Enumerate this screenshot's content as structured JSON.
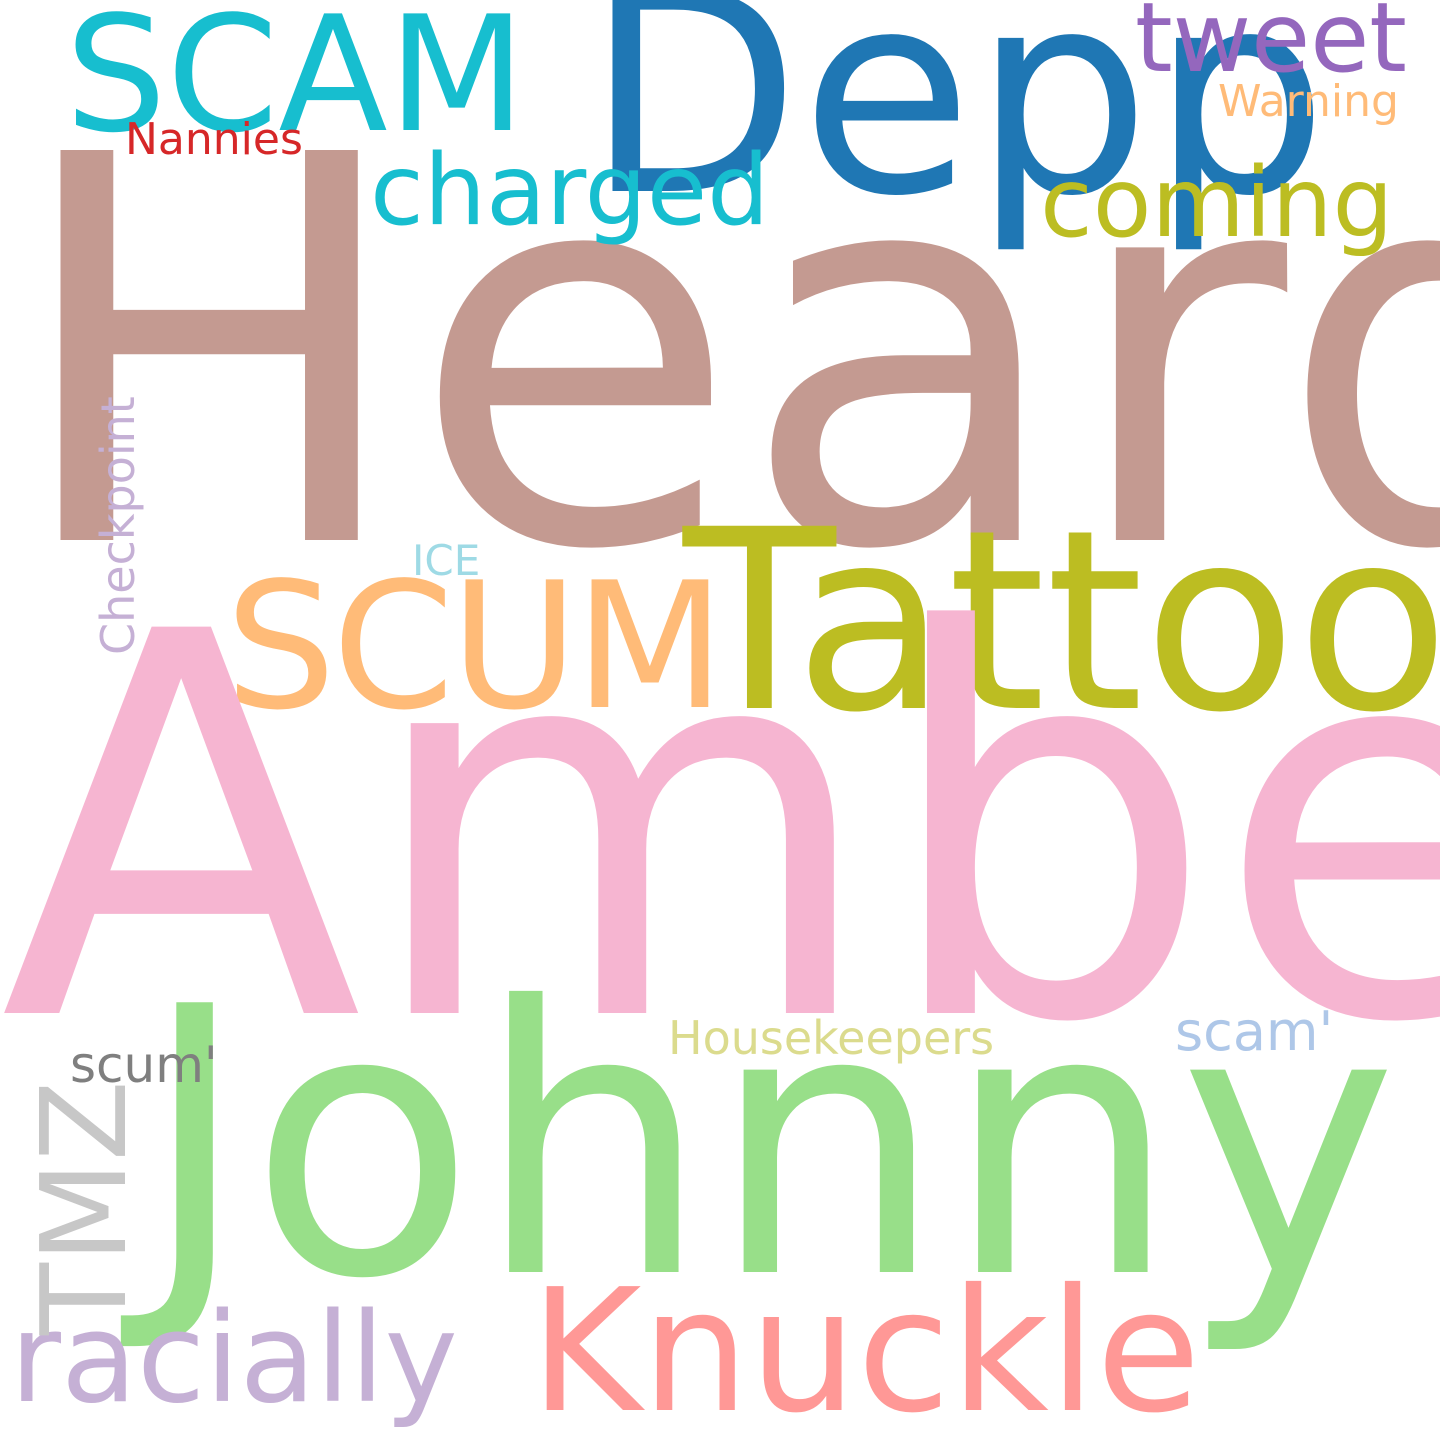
{
  "words": {
    "heard": {
      "text": "Heard",
      "color": "#c49a91"
    },
    "amber": {
      "text": "Amber",
      "color": "#f6b5d1"
    },
    "johnny": {
      "text": "Johnny",
      "color": "#98df89"
    },
    "depp": {
      "text": "Depp",
      "color": "#1f77b4"
    },
    "tattoo": {
      "text": "Tattoo",
      "color": "#bcbd22"
    },
    "scam": {
      "text": "SCAM",
      "color": "#17becf"
    },
    "scum": {
      "text": "SCUM",
      "color": "#ffbb78"
    },
    "knuckle": {
      "text": "Knuckle",
      "color": "#ff9896"
    },
    "charged": {
      "text": "charged",
      "color": "#17becf"
    },
    "coming": {
      "text": "coming",
      "color": "#bcbd22"
    },
    "tweet": {
      "text": "tweet",
      "color": "#9467bd"
    },
    "racially": {
      "text": "racially",
      "color": "#c5b0d5"
    },
    "warning": {
      "text": "Warning",
      "color": "#ffbb78"
    },
    "nannies": {
      "text": "Nannies",
      "color": "#d62728"
    },
    "ice": {
      "text": "ICE",
      "color": "#9edae5"
    },
    "housekeepers": {
      "text": "Housekeepers",
      "color": "#dbdb8d"
    },
    "scam2": {
      "text": "scam'",
      "color": "#aec7e8"
    },
    "scum2": {
      "text": "scum'",
      "color": "#7f7f7f"
    },
    "checkpoint": {
      "text": "Checkpoint",
      "color": "#c5b0d5"
    },
    "tmz": {
      "text": "TMZ",
      "color": "#c7c7c7"
    }
  }
}
